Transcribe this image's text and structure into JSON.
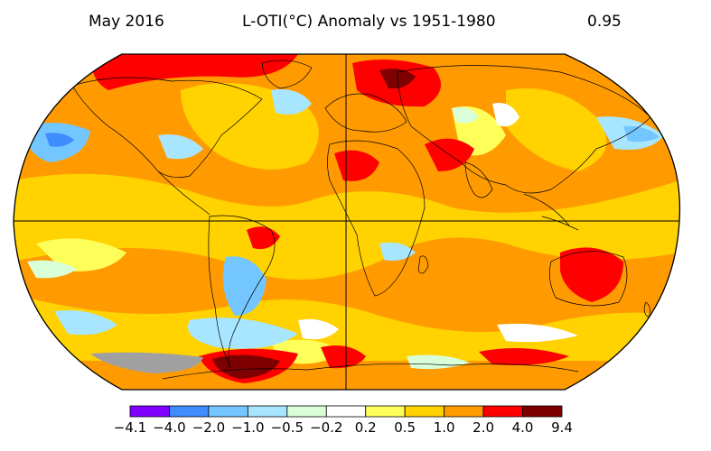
{
  "header": {
    "date": "May 2016",
    "title": "L-OTI(°C) Anomaly vs 1951-1980",
    "global_mean": "0.95"
  },
  "legend": {
    "colors": [
      "#7f00ff",
      "#3f8cff",
      "#73c6ff",
      "#a8e6ff",
      "#d9ffd9",
      "#ffffff",
      "#ffff5a",
      "#ffd200",
      "#ff9b00",
      "#ff0000",
      "#7f0000"
    ],
    "ticks": [
      "−4.1",
      "−4.0",
      "−2.0",
      "−1.0",
      "−0.5",
      "−0.2",
      "0.2",
      "0.5",
      "1.0",
      "2.0",
      "4.0",
      "9.4"
    ]
  },
  "map": {
    "projection": "Robinson-like global",
    "no_data_color": "#a0a0a0",
    "base_color": "#ff9b00"
  }
}
